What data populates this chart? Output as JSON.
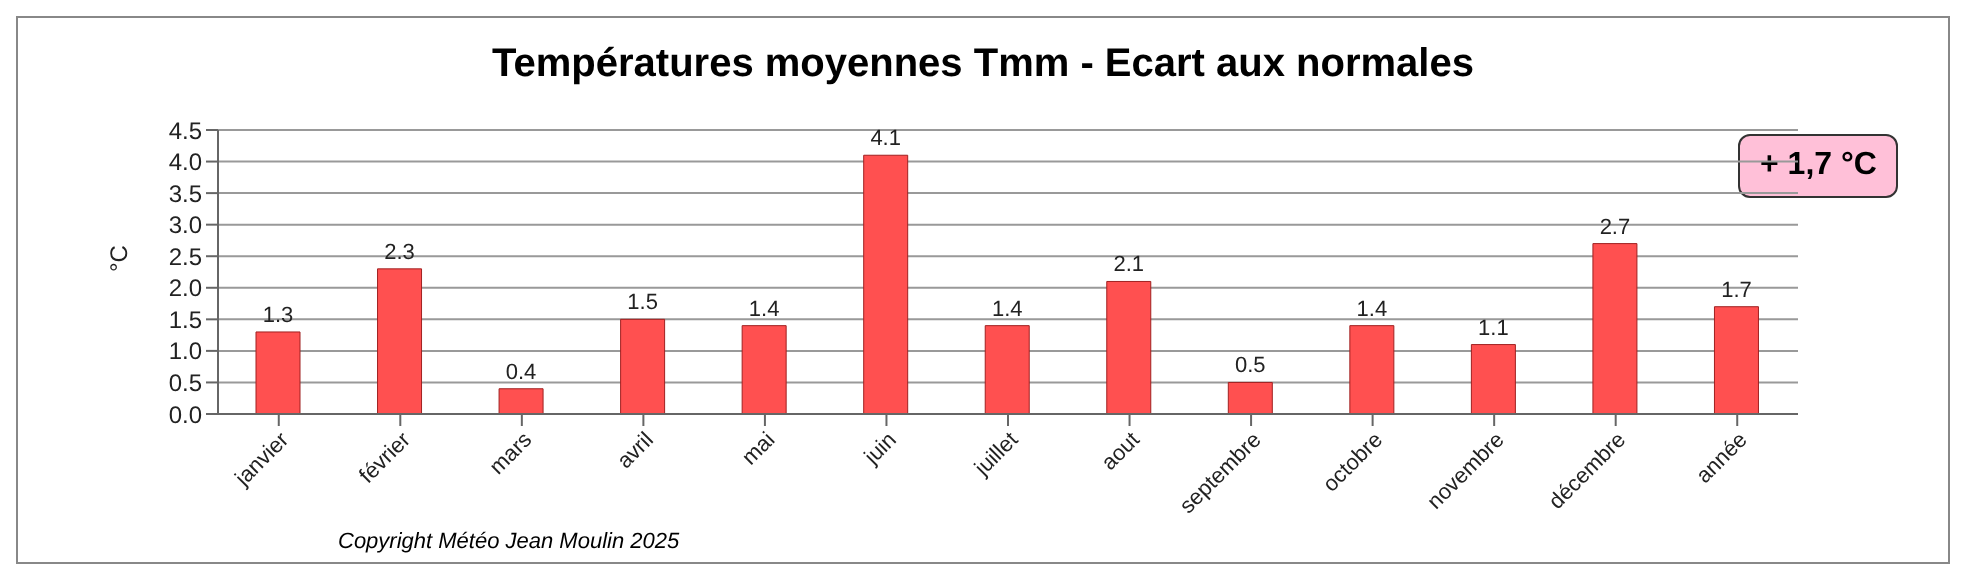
{
  "chart_data": {
    "type": "bar",
    "title": "Températures moyennes Tmm - Ecart aux normales",
    "ylabel": "°C",
    "categories": [
      "janvier",
      "février",
      "mars",
      "avril",
      "mai",
      "juin",
      "juillet",
      "aout",
      "septembre",
      "octobre",
      "novembre",
      "décembre",
      "année"
    ],
    "values": [
      1.3,
      2.3,
      0.4,
      1.5,
      1.4,
      4.1,
      1.4,
      2.1,
      0.5,
      1.4,
      1.1,
      2.7,
      1.7
    ],
    "color": "#ff5050",
    "ylim": [
      0,
      4.5
    ],
    "yticks": [
      {
        "value": 0,
        "label": "0.0"
      },
      {
        "value": 0.5,
        "label": "0.5"
      },
      {
        "value": 1,
        "label": "1.0"
      },
      {
        "value": 1.5,
        "label": "1.5"
      },
      {
        "value": 2,
        "label": "2.0"
      },
      {
        "value": 2.5,
        "label": "2.5"
      },
      {
        "value": 3,
        "label": "3.0"
      },
      {
        "value": 3.5,
        "label": "3.5"
      },
      {
        "value": 4,
        "label": "4.0"
      },
      {
        "value": 4.5,
        "label": "4.5"
      }
    ],
    "grid": "y",
    "data_labels": true,
    "annotations": [
      "+ 1,7 °C",
      "Copyright Météo Jean Moulin 2025"
    ]
  }
}
